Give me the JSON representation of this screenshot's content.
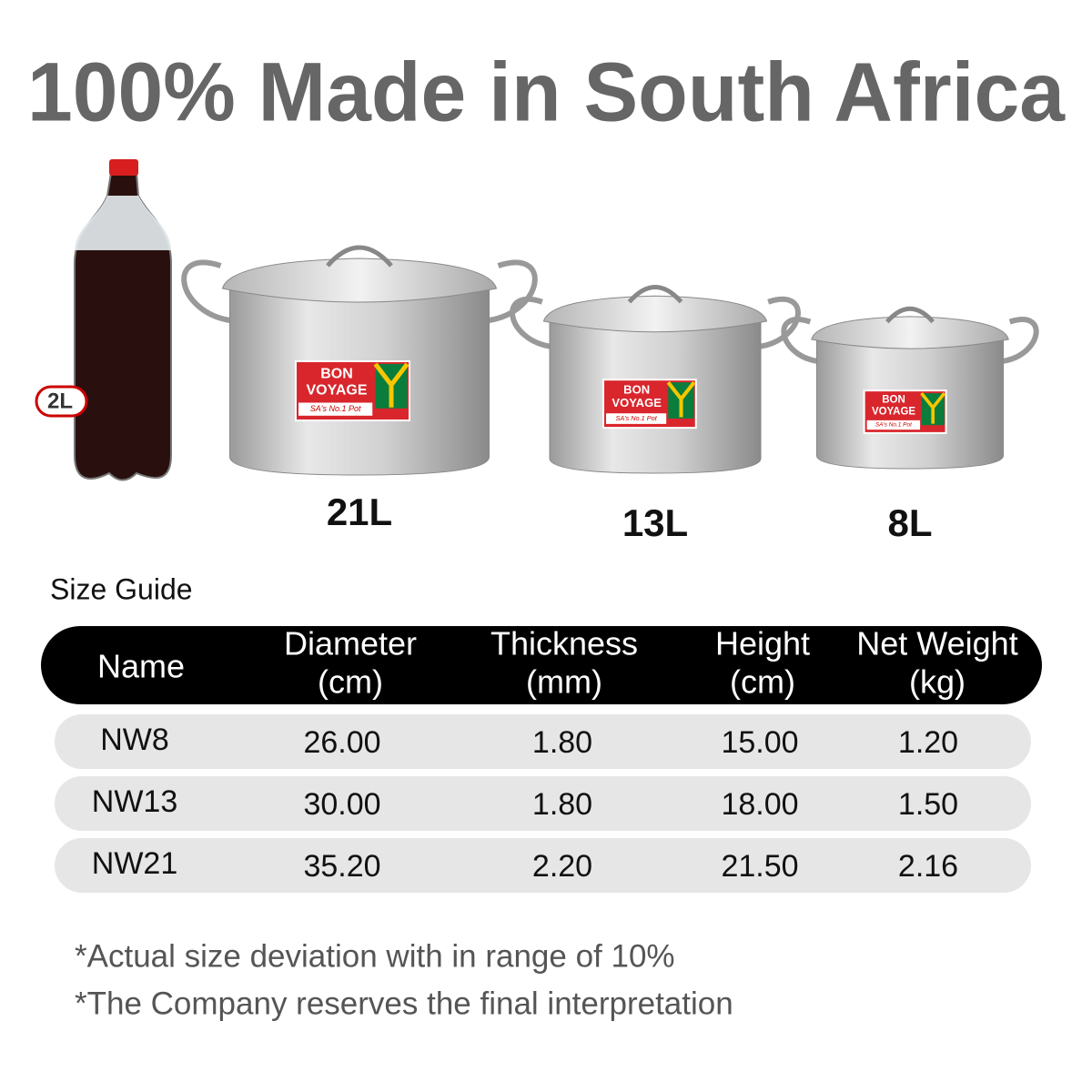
{
  "header": {
    "title": "100% Made in South Africa"
  },
  "bottle": {
    "label": "2L"
  },
  "pots": [
    {
      "size": "21L",
      "brand": [
        "BON",
        "VOYAGE"
      ],
      "tagline": "SA's No.1 Pot"
    },
    {
      "size": "13L",
      "brand": [
        "BON",
        "VOYAGE"
      ],
      "tagline": "SA's No.1 Pot"
    },
    {
      "size": "8L",
      "brand": [
        "BON",
        "VOYAGE"
      ],
      "tagline": "SA's No.1 Pot"
    }
  ],
  "table": {
    "caption": "Size Guide",
    "headers": [
      {
        "name": "Name"
      },
      {
        "name": "Diameter",
        "unit": "(cm)"
      },
      {
        "name": "Thickness",
        "unit": "(mm)"
      },
      {
        "name": "Height",
        "unit": "(cm)"
      },
      {
        "name": "Net Weight",
        "unit": "(kg)"
      }
    ],
    "rows": [
      [
        "NW8",
        "26.00",
        "1.80",
        "15.00",
        "1.20"
      ],
      [
        "NW13",
        "30.00",
        "1.80",
        "18.00",
        "1.50"
      ],
      [
        "NW21",
        "35.20",
        "2.20",
        "21.50",
        "2.16"
      ]
    ]
  },
  "notes": [
    "*Actual size deviation with in range of 10%",
    "*The Company reserves the final interpretation"
  ]
}
